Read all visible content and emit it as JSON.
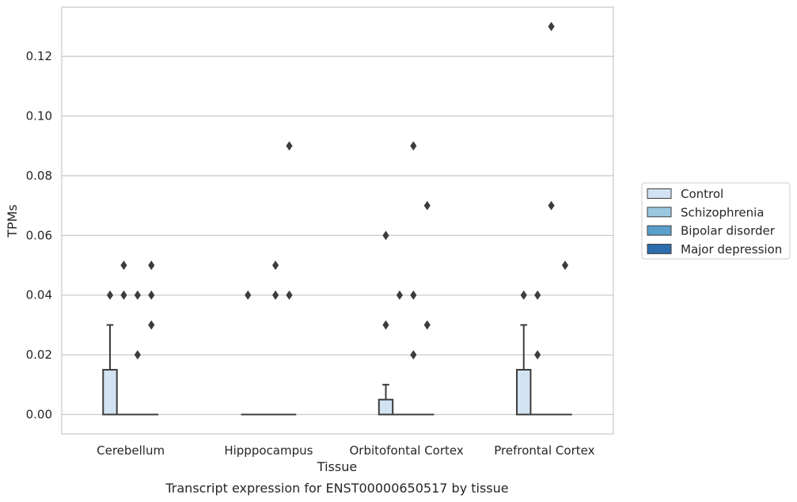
{
  "chart_data": {
    "type": "box",
    "xlabel": "Tissue",
    "ylabel": "TPMs",
    "caption": "Transcript expression for ENST00000650517 by tissue",
    "ylim": [
      -0.0065,
      0.1365
    ],
    "yticks": [
      0.0,
      0.02,
      0.04,
      0.06,
      0.08,
      0.1,
      0.12
    ],
    "ytick_labels": [
      "0.00",
      "0.02",
      "0.04",
      "0.06",
      "0.08",
      "0.10",
      "0.12"
    ],
    "grid": true,
    "legend_position": "right",
    "categories": [
      "Cerebellum",
      "Hipppocampus",
      "Orbitofontal Cortex",
      "Prefrontal Cortex"
    ],
    "series": [
      {
        "name": "Control",
        "color": "#d3e3f3",
        "boxes": [
          {
            "q1": 0.0,
            "median": 0.0,
            "q3": 0.015,
            "whisker_low": 0.0,
            "whisker_high": 0.03,
            "outliers": [
              0.04
            ]
          },
          {
            "q1": 0.0,
            "median": 0.0,
            "q3": 0.0,
            "whisker_low": 0.0,
            "whisker_high": 0.0,
            "outliers": [
              0.04
            ]
          },
          {
            "q1": 0.0,
            "median": 0.0,
            "q3": 0.005,
            "whisker_low": 0.0,
            "whisker_high": 0.01,
            "outliers": [
              0.03,
              0.06
            ]
          },
          {
            "q1": 0.0,
            "median": 0.0,
            "q3": 0.015,
            "whisker_low": 0.0,
            "whisker_high": 0.03,
            "outliers": [
              0.04
            ]
          }
        ]
      },
      {
        "name": "Schizophrenia",
        "color": "#9ac8e0",
        "boxes": [
          {
            "q1": 0.0,
            "median": 0.0,
            "q3": 0.0,
            "whisker_low": 0.0,
            "whisker_high": 0.0,
            "outliers": [
              0.04,
              0.05
            ]
          },
          {
            "q1": 0.0,
            "median": 0.0,
            "q3": 0.0,
            "whisker_low": 0.0,
            "whisker_high": 0.0,
            "outliers": []
          },
          {
            "q1": 0.0,
            "median": 0.0,
            "q3": 0.0,
            "whisker_low": 0.0,
            "whisker_high": 0.0,
            "outliers": [
              0.04
            ]
          },
          {
            "q1": 0.0,
            "median": 0.0,
            "q3": 0.0,
            "whisker_low": 0.0,
            "whisker_high": 0.0,
            "outliers": [
              0.04,
              0.02
            ]
          }
        ]
      },
      {
        "name": "Bipolar disorder",
        "color": "#5a9fcc",
        "boxes": [
          {
            "q1": 0.0,
            "median": 0.0,
            "q3": 0.0,
            "whisker_low": 0.0,
            "whisker_high": 0.0,
            "outliers": [
              0.04,
              0.02
            ]
          },
          {
            "q1": 0.0,
            "median": 0.0,
            "q3": 0.0,
            "whisker_low": 0.0,
            "whisker_high": 0.0,
            "outliers": [
              0.05,
              0.04
            ]
          },
          {
            "q1": 0.0,
            "median": 0.0,
            "q3": 0.0,
            "whisker_low": 0.0,
            "whisker_high": 0.0,
            "outliers": [
              0.09,
              0.04,
              0.02
            ]
          },
          {
            "q1": 0.0,
            "median": 0.0,
            "q3": 0.0,
            "whisker_low": 0.0,
            "whisker_high": 0.0,
            "outliers": [
              0.13,
              0.07
            ]
          }
        ]
      },
      {
        "name": "Major depression",
        "color": "#2c6dad",
        "boxes": [
          {
            "q1": 0.0,
            "median": 0.0,
            "q3": 0.0,
            "whisker_low": 0.0,
            "whisker_high": 0.0,
            "outliers": [
              0.05,
              0.04,
              0.03
            ]
          },
          {
            "q1": 0.0,
            "median": 0.0,
            "q3": 0.0,
            "whisker_low": 0.0,
            "whisker_high": 0.0,
            "outliers": [
              0.09,
              0.04
            ]
          },
          {
            "q1": 0.0,
            "median": 0.0,
            "q3": 0.0,
            "whisker_low": 0.0,
            "whisker_high": 0.0,
            "outliers": [
              0.07,
              0.03
            ]
          },
          {
            "q1": 0.0,
            "median": 0.0,
            "q3": 0.0,
            "whisker_low": 0.0,
            "whisker_high": 0.0,
            "outliers": [
              0.05
            ]
          }
        ]
      }
    ]
  },
  "colors": {
    "grid": "#cccccc",
    "frame": "#cccccc",
    "stroke": "#3c3c3c",
    "text": "#262626"
  }
}
